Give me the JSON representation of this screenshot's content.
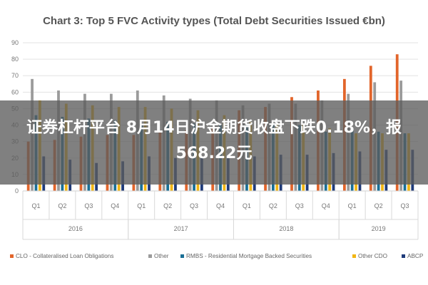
{
  "overlay": {
    "headline": "证券杠杆平台 8月14日沪金期货收盘下跌0.18%，报\n568.22元"
  },
  "chart_data": {
    "type": "bar",
    "title": "Chart 3: Top 5 FVC Activity types (Total Debt Securities Issued €bn)",
    "ylim": [
      0,
      90
    ],
    "yticks": [
      0,
      10,
      20,
      30,
      40,
      50,
      60,
      70,
      80,
      90
    ],
    "grid": true,
    "legend_position": "bottom",
    "categories": [
      "Q1",
      "Q2",
      "Q3",
      "Q4",
      "Q1",
      "Q2",
      "Q3",
      "Q4",
      "Q1",
      "Q2",
      "Q3",
      "Q4",
      "Q1",
      "Q2",
      "Q3"
    ],
    "year_groups": [
      {
        "label": "2016",
        "count": 4
      },
      {
        "label": "2017",
        "count": 4
      },
      {
        "label": "2018",
        "count": 4
      },
      {
        "label": "2019",
        "count": 3
      }
    ],
    "series": [
      {
        "name": "CLO - Collateralised Loan Obligations",
        "color": "#e2652b",
        "values": [
          30,
          31,
          33,
          34,
          34,
          36,
          37,
          39,
          49,
          51,
          57,
          61,
          68,
          76,
          83
        ]
      },
      {
        "name": "Other",
        "color": "#9b9b9b",
        "values": [
          68,
          61,
          59,
          59,
          61,
          58,
          56,
          55,
          52,
          53,
          53,
          55,
          59,
          66,
          67
        ]
      },
      {
        "name": "RMBS - Residential Mortgage Backed Securities",
        "color": "#1a6f96",
        "values": [
          46,
          45,
          44,
          43,
          41,
          42,
          41,
          40,
          40,
          41,
          40,
          36,
          38,
          36,
          35
        ]
      },
      {
        "name": "Other CDO",
        "color": "#f2b614",
        "values": [
          55,
          53,
          52,
          51,
          51,
          50,
          49,
          46,
          42,
          41,
          41,
          38,
          35,
          35,
          35
        ]
      },
      {
        "name": "ABCP",
        "color": "#1f3b7a",
        "values": [
          21,
          19,
          17,
          18,
          21,
          20,
          21,
          20,
          21,
          22,
          22,
          23,
          24,
          25,
          25
        ]
      }
    ]
  }
}
